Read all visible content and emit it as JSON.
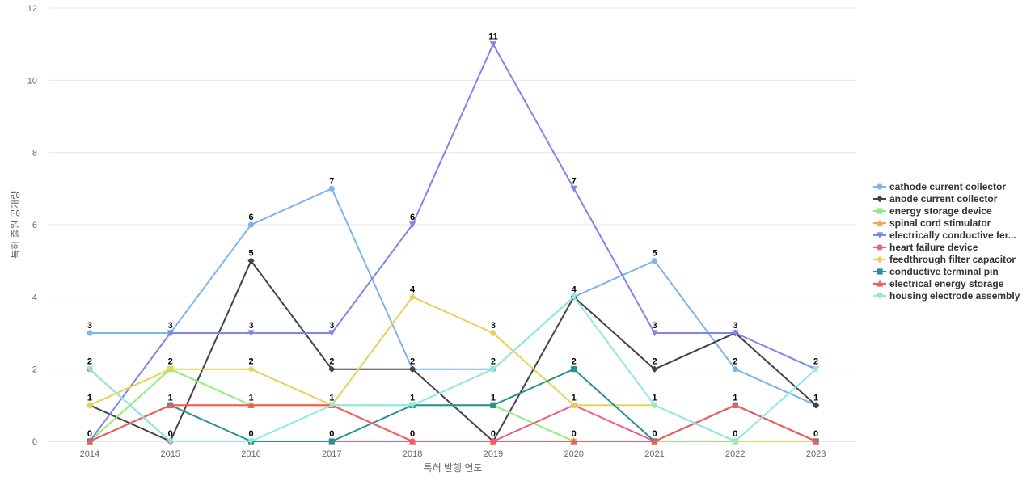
{
  "chart_data": {
    "type": "line",
    "x": [
      "2014",
      "2015",
      "2016",
      "2017",
      "2018",
      "2019",
      "2020",
      "2021",
      "2022",
      "2023"
    ],
    "xlabel": "특허 발행 연도",
    "ylabel": "특허 출원 공개량",
    "ylim": [
      0,
      12
    ],
    "yticks": [
      0,
      2,
      4,
      6,
      8,
      10,
      12
    ],
    "grid": true,
    "legend_position": "right",
    "series": [
      {
        "name": "cathode current collector",
        "color": "#7cb5ec",
        "marker": "circle",
        "values": [
          3,
          3,
          6,
          7,
          2,
          2,
          4,
          5,
          2,
          1
        ]
      },
      {
        "name": "anode current collector",
        "color": "#434348",
        "marker": "diamond",
        "values": [
          1,
          0,
          5,
          2,
          2,
          0,
          4,
          2,
          3,
          1
        ]
      },
      {
        "name": "energy storage device",
        "color": "#90ed7d",
        "marker": "square",
        "values": [
          0,
          2,
          1,
          1,
          1,
          1,
          0,
          0,
          0,
          0
        ]
      },
      {
        "name": "spinal cord stimulator",
        "color": "#f7a35c",
        "marker": "triangle",
        "values": [
          0,
          1,
          1,
          1,
          0,
          0,
          0,
          0,
          1,
          0
        ]
      },
      {
        "name": "electrically conductive fer...",
        "color": "#8085e9",
        "marker": "triangle-down",
        "values": [
          0,
          3,
          3,
          3,
          6,
          11,
          7,
          3,
          3,
          2
        ]
      },
      {
        "name": "heart failure device",
        "color": "#f15c80",
        "marker": "circle",
        "values": [
          2,
          0,
          0,
          0,
          0,
          0,
          1,
          0,
          1,
          0
        ]
      },
      {
        "name": "feedthrough filter capacitor",
        "color": "#e4d354",
        "marker": "diamond",
        "values": [
          1,
          2,
          2,
          1,
          4,
          3,
          1,
          1,
          0,
          0
        ]
      },
      {
        "name": "conductive terminal pin",
        "color": "#2b908f",
        "marker": "square",
        "values": [
          0,
          1,
          0,
          0,
          1,
          1,
          2,
          0,
          1,
          0
        ]
      },
      {
        "name": "electrical energy storage",
        "color": "#f45b5b",
        "marker": "triangle",
        "values": [
          0,
          1,
          1,
          1,
          0,
          0,
          0,
          0,
          1,
          0
        ]
      },
      {
        "name": "housing electrode assembly",
        "color": "#91e8e1",
        "marker": "triangle-down",
        "values": [
          2,
          0,
          0,
          1,
          1,
          2,
          4,
          1,
          0,
          2
        ]
      }
    ],
    "data_labels": [
      {
        "x": "2014",
        "text": "3",
        "value": 3
      },
      {
        "x": "2014",
        "text": "2",
        "value": 2
      },
      {
        "x": "2014",
        "text": "1",
        "value": 1
      },
      {
        "x": "2014",
        "text": "0",
        "value": 0
      },
      {
        "x": "2015",
        "text": "3",
        "value": 3
      },
      {
        "x": "2015",
        "text": "2",
        "value": 2
      },
      {
        "x": "2015",
        "text": "1",
        "value": 1
      },
      {
        "x": "2015",
        "text": "0",
        "value": 0
      },
      {
        "x": "2016",
        "text": "6",
        "value": 6
      },
      {
        "x": "2016",
        "text": "5",
        "value": 5
      },
      {
        "x": "2016",
        "text": "3",
        "value": 3
      },
      {
        "x": "2016",
        "text": "2",
        "value": 2
      },
      {
        "x": "2016",
        "text": "1",
        "value": 1
      },
      {
        "x": "2016",
        "text": "0",
        "value": 0
      },
      {
        "x": "2017",
        "text": "7",
        "value": 7
      },
      {
        "x": "2017",
        "text": "3",
        "value": 3
      },
      {
        "x": "2017",
        "text": "2",
        "value": 2
      },
      {
        "x": "2017",
        "text": "1",
        "value": 1
      },
      {
        "x": "2017",
        "text": "0",
        "value": 0
      },
      {
        "x": "2018",
        "text": "6",
        "value": 6
      },
      {
        "x": "2018",
        "text": "4",
        "value": 4
      },
      {
        "x": "2018",
        "text": "2",
        "value": 2
      },
      {
        "x": "2018",
        "text": "1",
        "value": 1
      },
      {
        "x": "2018",
        "text": "0",
        "value": 0
      },
      {
        "x": "2019",
        "text": "11",
        "value": 11
      },
      {
        "x": "2019",
        "text": "3",
        "value": 3
      },
      {
        "x": "2019",
        "text": "2",
        "value": 2
      },
      {
        "x": "2019",
        "text": "1",
        "value": 1
      },
      {
        "x": "2019",
        "text": "0",
        "value": 0
      },
      {
        "x": "2020",
        "text": "7",
        "value": 7
      },
      {
        "x": "2020",
        "text": "4",
        "value": 4
      },
      {
        "x": "2020",
        "text": "2",
        "value": 2
      },
      {
        "x": "2020",
        "text": "1",
        "value": 1
      },
      {
        "x": "2020",
        "text": "0",
        "value": 0
      },
      {
        "x": "2021",
        "text": "5",
        "value": 5
      },
      {
        "x": "2021",
        "text": "3",
        "value": 3
      },
      {
        "x": "2021",
        "text": "2",
        "value": 2
      },
      {
        "x": "2021",
        "text": "1",
        "value": 1
      },
      {
        "x": "2021",
        "text": "0",
        "value": 0
      },
      {
        "x": "2022",
        "text": "3",
        "value": 3
      },
      {
        "x": "2022",
        "text": "2",
        "value": 2
      },
      {
        "x": "2022",
        "text": "1",
        "value": 1
      },
      {
        "x": "2022",
        "text": "0",
        "value": 0
      },
      {
        "x": "2023",
        "text": "2",
        "value": 2
      },
      {
        "x": "2023",
        "text": "1",
        "value": 1
      },
      {
        "x": "2023",
        "text": "0",
        "value": 0
      }
    ]
  }
}
